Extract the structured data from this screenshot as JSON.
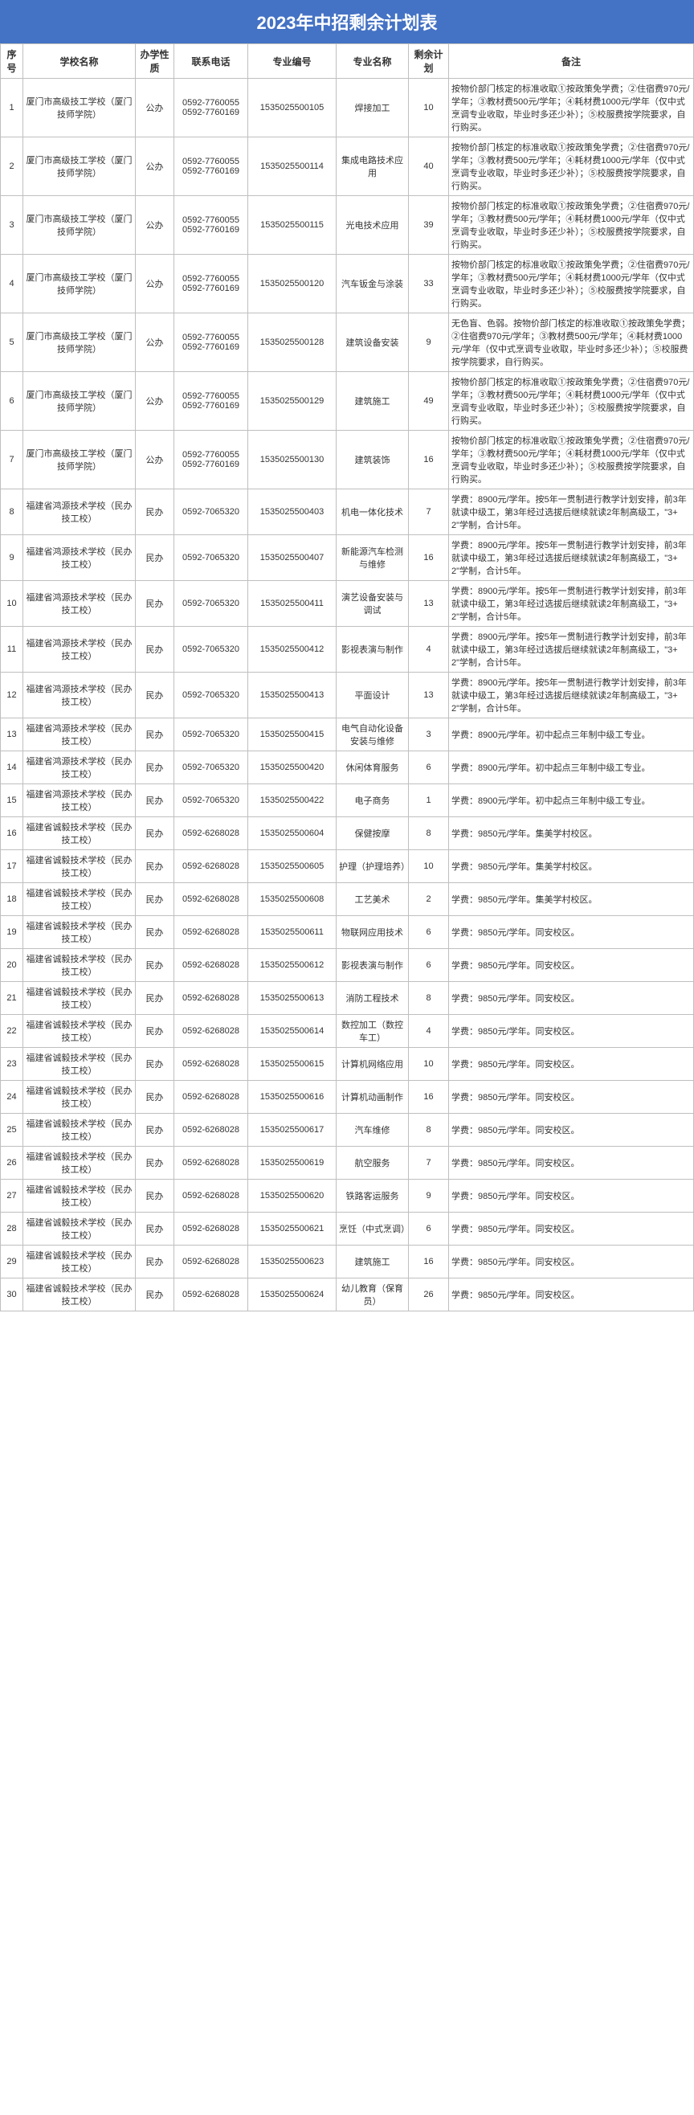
{
  "title": "2023年中招剩余计划表",
  "colors": {
    "header_bg": "#4472c4",
    "header_text": "#ffffff",
    "border": "#bfbfbf",
    "text": "#333333",
    "bg": "#ffffff"
  },
  "columns": [
    "序号",
    "学校名称",
    "办学性质",
    "联系电话",
    "专业编号",
    "专业名称",
    "剩余计划",
    "备注"
  ],
  "rows": [
    {
      "idx": "1",
      "school": "厦门市高级技工学校（厦门技师学院）",
      "nature": "公办",
      "phone": "0592-7760055\n0592-7760169",
      "code": "1535025500105",
      "major": "焊接加工",
      "remain": "10",
      "note": "按物价部门核定的标准收取①按政策免学费；②住宿费970元/学年；③教材费500元/学年；④耗材费1000元/学年（仅中式烹调专业收取，毕业时多还少补）；⑤校服费按学院要求，自行购买。"
    },
    {
      "idx": "2",
      "school": "厦门市高级技工学校（厦门技师学院）",
      "nature": "公办",
      "phone": "0592-7760055\n0592-7760169",
      "code": "1535025500114",
      "major": "集成电路技术应用",
      "remain": "40",
      "note": "按物价部门核定的标准收取①按政策免学费；②住宿费970元/学年；③教材费500元/学年；④耗材费1000元/学年（仅中式烹调专业收取，毕业时多还少补）；⑤校服费按学院要求，自行购买。"
    },
    {
      "idx": "3",
      "school": "厦门市高级技工学校（厦门技师学院）",
      "nature": "公办",
      "phone": "0592-7760055\n0592-7760169",
      "code": "1535025500115",
      "major": "光电技术应用",
      "remain": "39",
      "note": "按物价部门核定的标准收取①按政策免学费；②住宿费970元/学年；③教材费500元/学年；④耗材费1000元/学年（仅中式烹调专业收取，毕业时多还少补）；⑤校服费按学院要求，自行购买。"
    },
    {
      "idx": "4",
      "school": "厦门市高级技工学校（厦门技师学院）",
      "nature": "公办",
      "phone": "0592-7760055\n0592-7760169",
      "code": "1535025500120",
      "major": "汽车钣金与涂装",
      "remain": "33",
      "note": "按物价部门核定的标准收取①按政策免学费；②住宿费970元/学年；③教材费500元/学年；④耗材费1000元/学年（仅中式烹调专业收取，毕业时多还少补）；⑤校服费按学院要求，自行购买。"
    },
    {
      "idx": "5",
      "school": "厦门市高级技工学校（厦门技师学院）",
      "nature": "公办",
      "phone": "0592-7760055\n0592-7760169",
      "code": "1535025500128",
      "major": "建筑设备安装",
      "remain": "9",
      "note": "无色盲、色弱。按物价部门核定的标准收取①按政策免学费；②住宿费970元/学年；③教材费500元/学年；④耗材费1000元/学年（仅中式烹调专业收取，毕业时多还少补）；⑤校服费按学院要求，自行购买。"
    },
    {
      "idx": "6",
      "school": "厦门市高级技工学校（厦门技师学院）",
      "nature": "公办",
      "phone": "0592-7760055\n0592-7760169",
      "code": "1535025500129",
      "major": "建筑施工",
      "remain": "49",
      "note": "按物价部门核定的标准收取①按政策免学费；②住宿费970元/学年；③教材费500元/学年；④耗材费1000元/学年（仅中式烹调专业收取，毕业时多还少补）；⑤校服费按学院要求，自行购买。"
    },
    {
      "idx": "7",
      "school": "厦门市高级技工学校（厦门技师学院）",
      "nature": "公办",
      "phone": "0592-7760055\n0592-7760169",
      "code": "1535025500130",
      "major": "建筑装饰",
      "remain": "16",
      "note": "按物价部门核定的标准收取①按政策免学费；②住宿费970元/学年；③教材费500元/学年；④耗材费1000元/学年（仅中式烹调专业收取，毕业时多还少补）；⑤校服费按学院要求，自行购买。"
    },
    {
      "idx": "8",
      "school": "福建省鸿源技术学校（民办技工校）",
      "nature": "民办",
      "phone": "0592-7065320",
      "code": "1535025500403",
      "major": "机电一体化技术",
      "remain": "7",
      "note": "学费：8900元/学年。按5年一贯制进行教学计划安排，前3年就读中级工，第3年经过选拔后继续就读2年制高级工，\"3+2\"学制，合计5年。"
    },
    {
      "idx": "9",
      "school": "福建省鸿源技术学校（民办技工校）",
      "nature": "民办",
      "phone": "0592-7065320",
      "code": "1535025500407",
      "major": "新能源汽车检测与维修",
      "remain": "16",
      "note": "学费：8900元/学年。按5年一贯制进行教学计划安排，前3年就读中级工，第3年经过选拔后继续就读2年制高级工，\"3+2\"学制，合计5年。"
    },
    {
      "idx": "10",
      "school": "福建省鸿源技术学校（民办技工校）",
      "nature": "民办",
      "phone": "0592-7065320",
      "code": "1535025500411",
      "major": "演艺设备安装与调试",
      "remain": "13",
      "note": "学费：8900元/学年。按5年一贯制进行教学计划安排，前3年就读中级工，第3年经过选拔后继续就读2年制高级工，\"3+2\"学制，合计5年。"
    },
    {
      "idx": "11",
      "school": "福建省鸿源技术学校（民办技工校）",
      "nature": "民办",
      "phone": "0592-7065320",
      "code": "1535025500412",
      "major": "影视表演与制作",
      "remain": "4",
      "note": "学费：8900元/学年。按5年一贯制进行教学计划安排，前3年就读中级工，第3年经过选拔后继续就读2年制高级工，\"3+2\"学制，合计5年。"
    },
    {
      "idx": "12",
      "school": "福建省鸿源技术学校（民办技工校）",
      "nature": "民办",
      "phone": "0592-7065320",
      "code": "1535025500413",
      "major": "平面设计",
      "remain": "13",
      "note": "学费：8900元/学年。按5年一贯制进行教学计划安排，前3年就读中级工，第3年经过选拔后继续就读2年制高级工，\"3+2\"学制，合计5年。"
    },
    {
      "idx": "13",
      "school": "福建省鸿源技术学校（民办技工校）",
      "nature": "民办",
      "phone": "0592-7065320",
      "code": "1535025500415",
      "major": "电气自动化设备安装与维修",
      "remain": "3",
      "note": "学费：8900元/学年。初中起点三年制中级工专业。"
    },
    {
      "idx": "14",
      "school": "福建省鸿源技术学校（民办技工校）",
      "nature": "民办",
      "phone": "0592-7065320",
      "code": "1535025500420",
      "major": "休闲体育服务",
      "remain": "6",
      "note": "学费：8900元/学年。初中起点三年制中级工专业。"
    },
    {
      "idx": "15",
      "school": "福建省鸿源技术学校（民办技工校）",
      "nature": "民办",
      "phone": "0592-7065320",
      "code": "1535025500422",
      "major": "电子商务",
      "remain": "1",
      "note": "学费：8900元/学年。初中起点三年制中级工专业。"
    },
    {
      "idx": "16",
      "school": "福建省诚毅技术学校（民办技工校）",
      "nature": "民办",
      "phone": "0592-6268028",
      "code": "1535025500604",
      "major": "保健按摩",
      "remain": "8",
      "note": "学费：9850元/学年。集美学村校区。"
    },
    {
      "idx": "17",
      "school": "福建省诚毅技术学校（民办技工校）",
      "nature": "民办",
      "phone": "0592-6268028",
      "code": "1535025500605",
      "major": "护理（护理培养）",
      "remain": "10",
      "note": "学费：9850元/学年。集美学村校区。"
    },
    {
      "idx": "18",
      "school": "福建省诚毅技术学校（民办技工校）",
      "nature": "民办",
      "phone": "0592-6268028",
      "code": "1535025500608",
      "major": "工艺美术",
      "remain": "2",
      "note": "学费：9850元/学年。集美学村校区。"
    },
    {
      "idx": "19",
      "school": "福建省诚毅技术学校（民办技工校）",
      "nature": "民办",
      "phone": "0592-6268028",
      "code": "1535025500611",
      "major": "物联网应用技术",
      "remain": "6",
      "note": "学费：9850元/学年。同安校区。"
    },
    {
      "idx": "20",
      "school": "福建省诚毅技术学校（民办技工校）",
      "nature": "民办",
      "phone": "0592-6268028",
      "code": "1535025500612",
      "major": "影视表演与制作",
      "remain": "6",
      "note": "学费：9850元/学年。同安校区。"
    },
    {
      "idx": "21",
      "school": "福建省诚毅技术学校（民办技工校）",
      "nature": "民办",
      "phone": "0592-6268028",
      "code": "1535025500613",
      "major": "消防工程技术",
      "remain": "8",
      "note": "学费：9850元/学年。同安校区。"
    },
    {
      "idx": "22",
      "school": "福建省诚毅技术学校（民办技工校）",
      "nature": "民办",
      "phone": "0592-6268028",
      "code": "1535025500614",
      "major": "数控加工（数控车工）",
      "remain": "4",
      "note": "学费：9850元/学年。同安校区。"
    },
    {
      "idx": "23",
      "school": "福建省诚毅技术学校（民办技工校）",
      "nature": "民办",
      "phone": "0592-6268028",
      "code": "1535025500615",
      "major": "计算机网络应用",
      "remain": "10",
      "note": "学费：9850元/学年。同安校区。"
    },
    {
      "idx": "24",
      "school": "福建省诚毅技术学校（民办技工校）",
      "nature": "民办",
      "phone": "0592-6268028",
      "code": "1535025500616",
      "major": "计算机动画制作",
      "remain": "16",
      "note": "学费：9850元/学年。同安校区。"
    },
    {
      "idx": "25",
      "school": "福建省诚毅技术学校（民办技工校）",
      "nature": "民办",
      "phone": "0592-6268028",
      "code": "1535025500617",
      "major": "汽车维修",
      "remain": "8",
      "note": "学费：9850元/学年。同安校区。"
    },
    {
      "idx": "26",
      "school": "福建省诚毅技术学校（民办技工校）",
      "nature": "民办",
      "phone": "0592-6268028",
      "code": "1535025500619",
      "major": "航空服务",
      "remain": "7",
      "note": "学费：9850元/学年。同安校区。"
    },
    {
      "idx": "27",
      "school": "福建省诚毅技术学校（民办技工校）",
      "nature": "民办",
      "phone": "0592-6268028",
      "code": "1535025500620",
      "major": "铁路客运服务",
      "remain": "9",
      "note": "学费：9850元/学年。同安校区。"
    },
    {
      "idx": "28",
      "school": "福建省诚毅技术学校（民办技工校）",
      "nature": "民办",
      "phone": "0592-6268028",
      "code": "1535025500621",
      "major": "烹饪（中式烹调）",
      "remain": "6",
      "note": "学费：9850元/学年。同安校区。"
    },
    {
      "idx": "29",
      "school": "福建省诚毅技术学校（民办技工校）",
      "nature": "民办",
      "phone": "0592-6268028",
      "code": "1535025500623",
      "major": "建筑施工",
      "remain": "16",
      "note": "学费：9850元/学年。同安校区。"
    },
    {
      "idx": "30",
      "school": "福建省诚毅技术学校（民办技工校）",
      "nature": "民办",
      "phone": "0592-6268028",
      "code": "1535025500624",
      "major": "幼儿教育（保育员）",
      "remain": "26",
      "note": "学费：9850元/学年。同安校区。"
    }
  ]
}
